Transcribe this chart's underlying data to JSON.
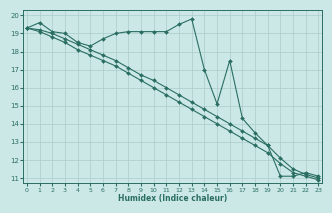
{
  "xlabel": "Humidex (Indice chaleur)",
  "background_color": "#cce8e6",
  "grid_color": "#aaccca",
  "line_color": "#2a6e62",
  "xlim": [
    -0.3,
    23.3
  ],
  "ylim": [
    10.7,
    20.3
  ],
  "x_ticks": [
    0,
    1,
    2,
    3,
    4,
    5,
    6,
    7,
    8,
    9,
    10,
    11,
    12,
    13,
    14,
    15,
    16,
    17,
    18,
    19,
    20,
    21,
    22,
    23
  ],
  "y_ticks": [
    11,
    12,
    13,
    14,
    15,
    16,
    17,
    18,
    19,
    20
  ],
  "line1_x": [
    0,
    1,
    2,
    3,
    4,
    5,
    6,
    7,
    8,
    9,
    10,
    11,
    12,
    13,
    14,
    15,
    16,
    17,
    18,
    19,
    20,
    21,
    22,
    23
  ],
  "line1_y": [
    19.3,
    19.6,
    19.1,
    19.0,
    18.5,
    18.3,
    18.7,
    19.0,
    19.1,
    19.1,
    19.1,
    19.1,
    19.5,
    19.8,
    17.0,
    15.1,
    17.5,
    14.3,
    13.5,
    12.8,
    11.1,
    11.1,
    11.3,
    11.1
  ],
  "line2_x": [
    0,
    1,
    2,
    3,
    4,
    5,
    6,
    7,
    8,
    9,
    10,
    11,
    12,
    13,
    14,
    15,
    16,
    17,
    18,
    19,
    20,
    21,
    22,
    23
  ],
  "line2_y": [
    19.3,
    19.2,
    19.0,
    18.7,
    18.4,
    18.1,
    17.8,
    17.5,
    17.1,
    16.7,
    16.4,
    16.0,
    15.6,
    15.2,
    14.8,
    14.4,
    14.0,
    13.6,
    13.2,
    12.8,
    12.1,
    11.5,
    11.2,
    11.0
  ],
  "line3_x": [
    0,
    1,
    2,
    3,
    4,
    5,
    6,
    7,
    8,
    9,
    10,
    11,
    12,
    13,
    14,
    15,
    16,
    17,
    18,
    19,
    20,
    21,
    22,
    23
  ],
  "line3_y": [
    19.3,
    19.1,
    18.8,
    18.5,
    18.1,
    17.8,
    17.5,
    17.2,
    16.8,
    16.4,
    16.0,
    15.6,
    15.2,
    14.8,
    14.4,
    14.0,
    13.6,
    13.2,
    12.8,
    12.4,
    11.8,
    11.3,
    11.1,
    10.9
  ]
}
